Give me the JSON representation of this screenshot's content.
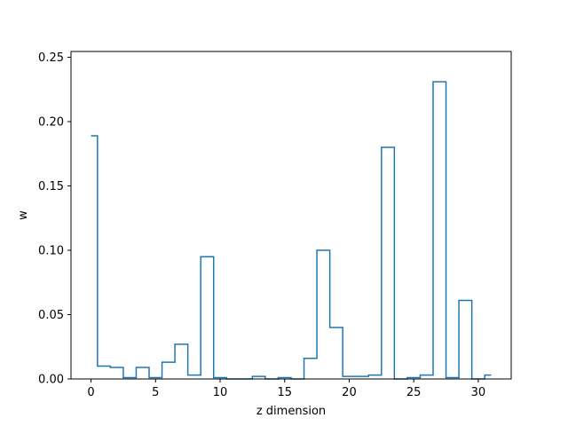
{
  "chart_data": {
    "type": "line",
    "drawstyle": "steps-mid",
    "title": "",
    "xlabel": "z dimension",
    "ylabel": "w",
    "xlim": [
      -1.55,
      32.55
    ],
    "ylim": [
      0,
      0.2545
    ],
    "xticks": [
      0,
      5,
      10,
      15,
      20,
      25,
      30
    ],
    "yticks": [
      0.0,
      0.05,
      0.1,
      0.15,
      0.2,
      0.25
    ],
    "ytick_labels": [
      "0.00",
      "0.05",
      "0.10",
      "0.15",
      "0.20",
      "0.25"
    ],
    "xtick_labels": [
      "0",
      "5",
      "10",
      "15",
      "20",
      "25",
      "30"
    ],
    "grid": false,
    "line_color": "#1f77b4",
    "series": [
      {
        "x": [
          0,
          1,
          2,
          3,
          4,
          5,
          6,
          7,
          8,
          9,
          10,
          11,
          12,
          13,
          14,
          15,
          16,
          17,
          18,
          19,
          20,
          21,
          22,
          23,
          24,
          25,
          26,
          27,
          28,
          29,
          30,
          31
        ],
        "values": [
          0.189,
          0.01,
          0.009,
          0.001,
          0.009,
          0.001,
          0.013,
          0.027,
          0.003,
          0.095,
          0.001,
          0.0,
          0.0,
          0.002,
          0.0,
          0.001,
          0.0,
          0.016,
          0.1,
          0.04,
          0.002,
          0.002,
          0.003,
          0.18,
          0.0,
          0.001,
          0.003,
          0.231,
          0.001,
          0.061,
          0.0,
          0.003
        ]
      }
    ]
  }
}
